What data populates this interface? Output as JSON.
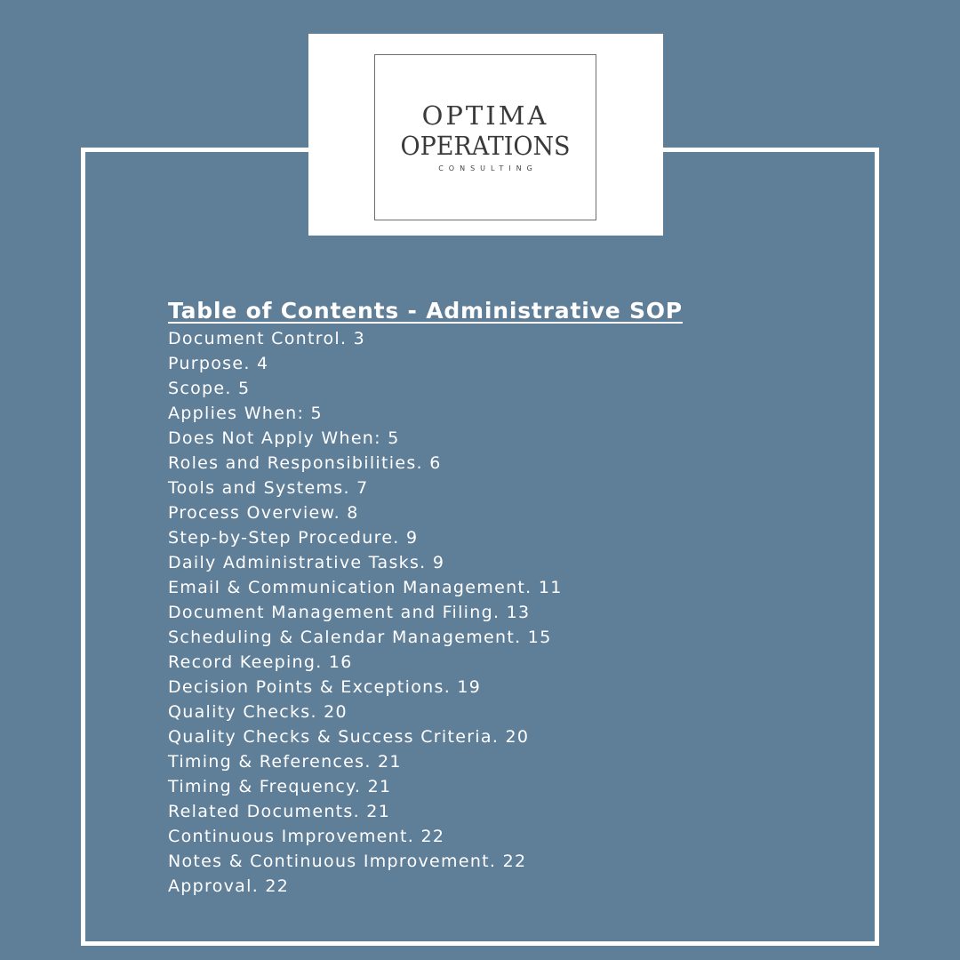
{
  "logo": {
    "line1": "OPTIMA",
    "line2": "OPERATIONS",
    "line3": "CONSULTING"
  },
  "toc": {
    "title": "Table of Contents - Administrative SOP",
    "items": [
      {
        "label": "Document Control. 3"
      },
      {
        "label": "Purpose. 4"
      },
      {
        "label": "Scope. 5"
      },
      {
        "label": "Applies When: 5"
      },
      {
        "label": "Does Not Apply When: 5"
      },
      {
        "label": "Roles and Responsibilities. 6"
      },
      {
        "label": "Tools and Systems. 7"
      },
      {
        "label": "Process Overview. 8"
      },
      {
        "label": "Step-by-Step Procedure. 9"
      },
      {
        "label": "Daily Administrative Tasks. 9"
      },
      {
        "label": "Email & Communication Management. 11"
      },
      {
        "label": "Document Management and Filing. 13"
      },
      {
        "label": "Scheduling & Calendar Management. 15"
      },
      {
        "label": "Record Keeping. 16"
      },
      {
        "label": "Decision Points & Exceptions. 19"
      },
      {
        "label": "Quality Checks. 20"
      },
      {
        "label": "Quality Checks & Success Criteria. 20"
      },
      {
        "label": "Timing & References. 21"
      },
      {
        "label": "Timing & Frequency. 21"
      },
      {
        "label": "Related Documents. 21"
      },
      {
        "label": "Continuous Improvement. 22"
      },
      {
        "label": "Notes & Continuous Improvement. 22"
      },
      {
        "label": "Approval. 22"
      }
    ]
  },
  "colors": {
    "background": "#5f7e98",
    "frame": "#ffffff",
    "text": "#ffffff",
    "logo_text": "#3a3a3a"
  }
}
